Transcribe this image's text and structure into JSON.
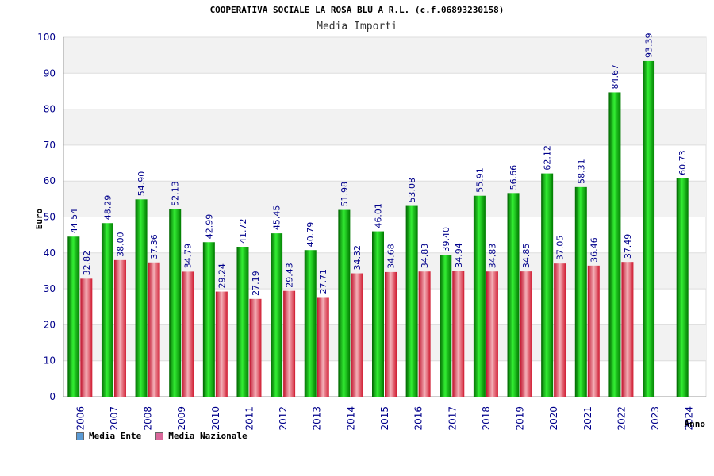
{
  "title": "COOPERATIVA SOCIALE LA ROSA BLU A R.L. (c.f.06893230158)",
  "subtitle": "Media Importi",
  "colors": {
    "ente_dark": "#008000",
    "ente_light": "#22dd22",
    "naz_dark": "#cc1122",
    "naz_light": "#f0a0aa",
    "band": "#f2f2f2",
    "axis_text": "#00008b",
    "legend_ente": "#5b9bd5",
    "legend_naz": "#d9679a"
  },
  "legend": [
    {
      "label": "Media Ente"
    },
    {
      "label": "Media Nazionale"
    }
  ],
  "chart_data": {
    "type": "bar",
    "xlabel": "Anno",
    "ylabel": "Euro",
    "ylim": [
      0,
      100
    ],
    "yticks": [
      0,
      10,
      20,
      30,
      40,
      50,
      60,
      70,
      80,
      90,
      100
    ],
    "grid": true,
    "legend_position": "bottom-left",
    "categories": [
      "2006",
      "2007",
      "2008",
      "2009",
      "2010",
      "2011",
      "2012",
      "2013",
      "2014",
      "2015",
      "2016",
      "2017",
      "2018",
      "2019",
      "2020",
      "2021",
      "2022",
      "2023",
      "2024"
    ],
    "series": [
      {
        "name": "Media Ente",
        "values": [
          44.54,
          48.29,
          54.9,
          52.13,
          42.99,
          41.72,
          45.45,
          40.79,
          51.98,
          46.01,
          53.08,
          39.4,
          55.91,
          56.66,
          62.12,
          58.31,
          84.67,
          93.39,
          60.73
        ],
        "labels": [
          "44.54",
          "48.29",
          "54.90",
          "52.13",
          "42.99",
          "41.72",
          "45.45",
          "40.79",
          "51.98",
          "46.01",
          "53.08",
          "39.40",
          "55.91",
          "56.66",
          "62.12",
          "58.31",
          "84.67",
          "93.39",
          "60.73"
        ]
      },
      {
        "name": "Media Nazionale",
        "values": [
          32.82,
          38.0,
          37.36,
          34.79,
          29.24,
          27.19,
          29.43,
          27.71,
          34.32,
          34.68,
          34.83,
          34.94,
          34.83,
          34.85,
          37.05,
          36.46,
          37.49,
          null,
          null
        ],
        "labels": [
          "32.82",
          "38.00",
          "37.36",
          "34.79",
          "29.24",
          "27.19",
          "29.43",
          "27.71",
          "34.32",
          "34.68",
          "34.83",
          "34.94",
          "34.83",
          "34.85",
          "37.05",
          "36.46",
          "37.49",
          null,
          null
        ]
      }
    ]
  }
}
